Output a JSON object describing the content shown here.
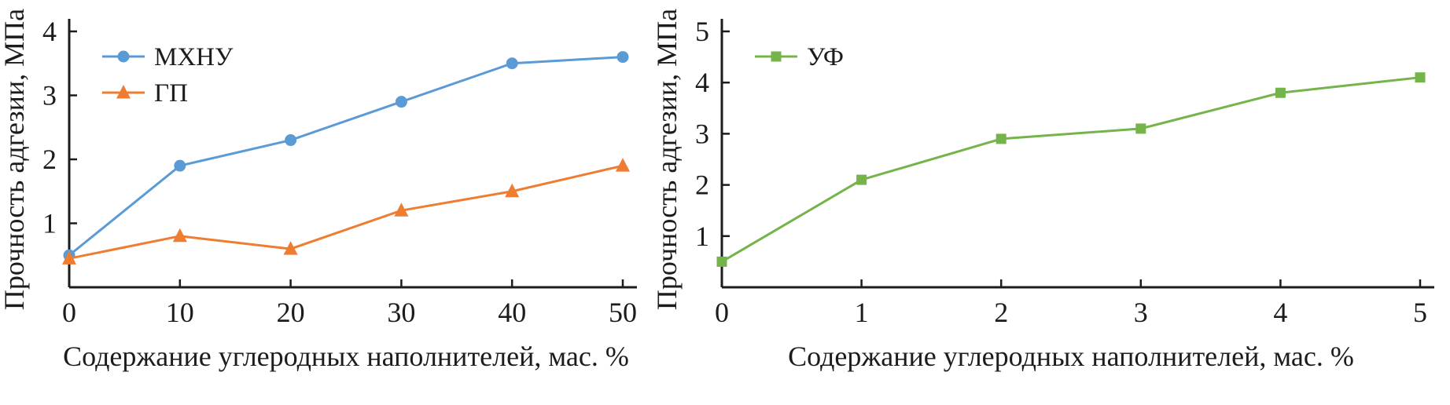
{
  "figure": {
    "background": "#ffffff",
    "axis_color": "#1c1c1c",
    "text_color": "#1c1c1c"
  },
  "chart_data": [
    {
      "type": "line",
      "title": "",
      "xlabel": "Содержание углеродных наполнителей, мас. %",
      "ylabel": "Прочность адгезии, МПа",
      "x": [
        0,
        10,
        20,
        30,
        40,
        50
      ],
      "xlim": [
        0,
        50
      ],
      "ylim": [
        0,
        4
      ],
      "xticks": [
        0,
        10,
        20,
        30,
        40,
        50
      ],
      "yticks": [
        1,
        2,
        3,
        4
      ],
      "grid": false,
      "legend_position": "top-left",
      "series": [
        {
          "name": "МХНУ",
          "color": "#5b9bd5",
          "marker": "circle",
          "values": [
            0.5,
            1.9,
            2.3,
            2.9,
            3.5,
            3.6
          ]
        },
        {
          "name": "ГП",
          "color": "#ee7d31",
          "marker": "triangle",
          "values": [
            0.45,
            0.8,
            0.6,
            1.2,
            1.5,
            1.9
          ]
        }
      ]
    },
    {
      "type": "line",
      "title": "",
      "xlabel": "Содержание углеродных наполнителей, мас. %",
      "ylabel": "Прочность адгезии, МПа",
      "x": [
        0,
        1,
        2,
        3,
        4,
        5
      ],
      "xlim": [
        0,
        5
      ],
      "ylim": [
        0,
        5
      ],
      "xticks": [
        0,
        1,
        2,
        3,
        4,
        5
      ],
      "yticks": [
        1,
        2,
        3,
        4,
        5
      ],
      "grid": false,
      "legend_position": "top-left",
      "series": [
        {
          "name": "УФ",
          "color": "#74b44a",
          "marker": "square",
          "values": [
            0.5,
            2.1,
            2.9,
            3.1,
            3.8,
            4.1
          ]
        }
      ]
    }
  ]
}
